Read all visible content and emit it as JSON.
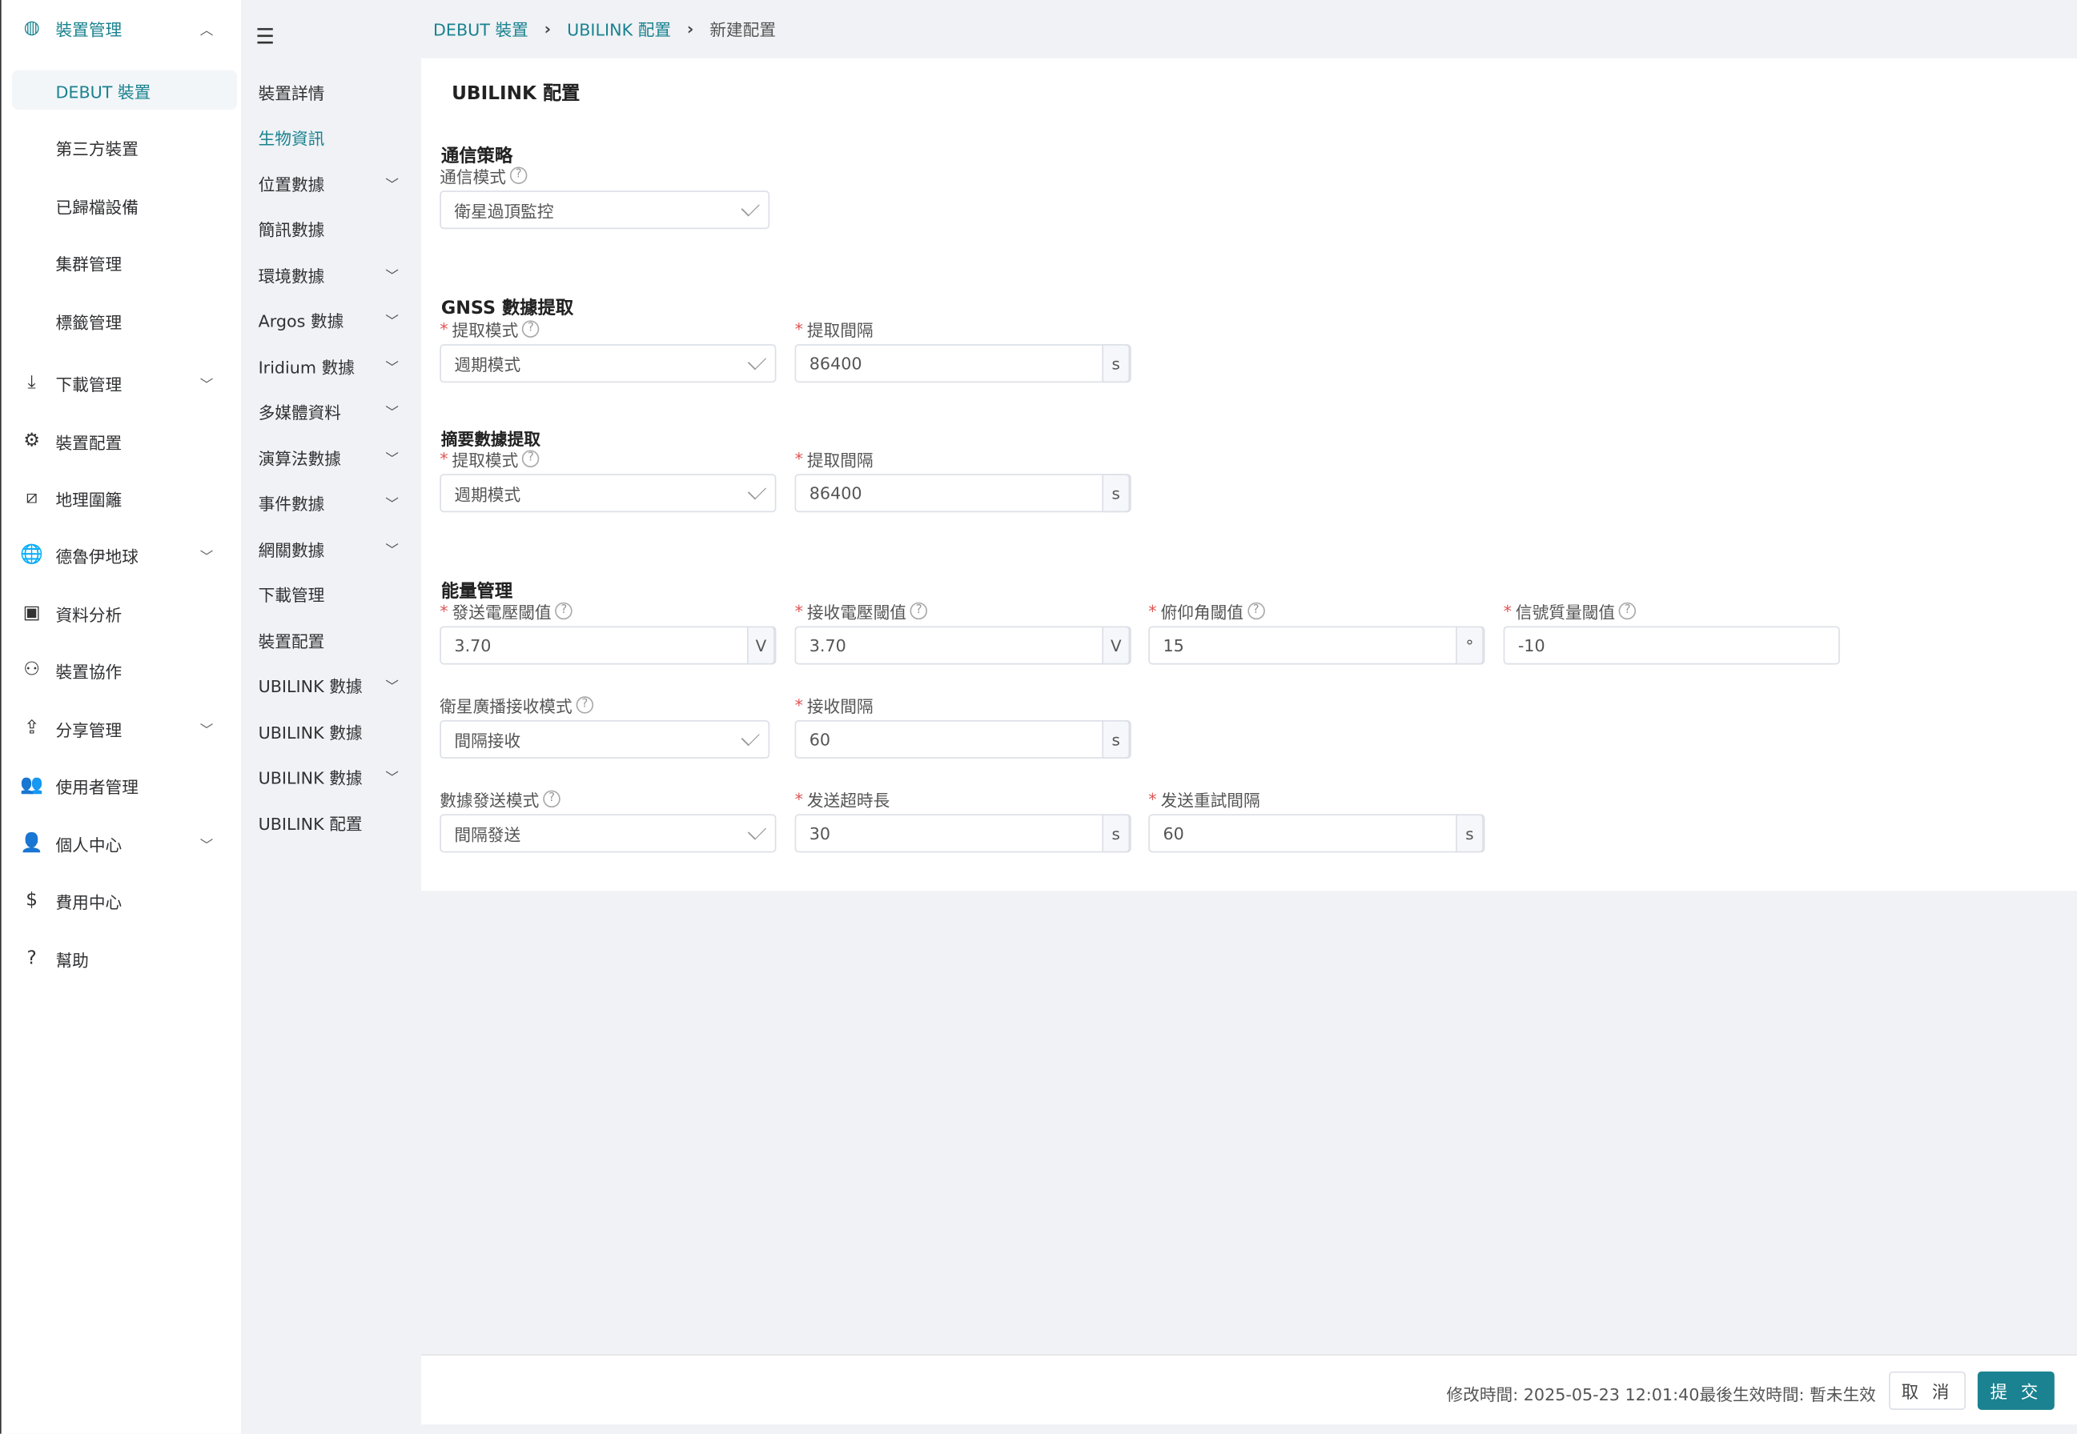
{
  "sidebar": {
    "items": [
      {
        "label": "裝置管理",
        "icon": "chip-icon",
        "chevron": "up",
        "active": true
      },
      {
        "label": "DEBUT 裝置",
        "sub": true,
        "selected": true
      },
      {
        "label": "第三方裝置",
        "sub": true
      },
      {
        "label": "已歸檔設備",
        "sub": true
      },
      {
        "label": "集群管理",
        "sub": true
      },
      {
        "label": "標籤管理",
        "sub": true
      },
      {
        "label": "下載管理",
        "icon": "download-icon",
        "chevron": "down"
      },
      {
        "label": "裝置配置",
        "icon": "device-config-icon"
      },
      {
        "label": "地理圍籬",
        "icon": "geofence-icon"
      },
      {
        "label": "德魯伊地球",
        "icon": "globe-icon",
        "chevron": "down"
      },
      {
        "label": "資料分析",
        "icon": "chart-icon"
      },
      {
        "label": "裝置協作",
        "icon": "collaboration-icon"
      },
      {
        "label": "分享管理",
        "icon": "share-icon",
        "chevron": "down"
      },
      {
        "label": "使用者管理",
        "icon": "users-icon"
      },
      {
        "label": "個人中心",
        "icon": "user-icon",
        "chevron": "down"
      },
      {
        "label": "費用中心",
        "icon": "dollar-icon"
      },
      {
        "label": "幫助",
        "icon": "help-icon"
      }
    ]
  },
  "subnav": {
    "items": [
      {
        "label": "裝置詳情"
      },
      {
        "label": "生物資訊",
        "active": true
      },
      {
        "label": "位置數據",
        "chevron": true
      },
      {
        "label": "簡訊數據"
      },
      {
        "label": "環境數據",
        "chevron": true
      },
      {
        "label": "Argos 數據",
        "chevron": true
      },
      {
        "label": "Iridium 數據",
        "chevron": true
      },
      {
        "label": "多媒體資料",
        "chevron": true
      },
      {
        "label": "演算法數據",
        "chevron": true
      },
      {
        "label": "事件數據",
        "chevron": true
      },
      {
        "label": "網關數據",
        "chevron": true
      },
      {
        "label": "下載管理"
      },
      {
        "label": "裝置配置"
      },
      {
        "label": "UBILINK 數據",
        "chevron": true
      },
      {
        "label": "UBILINK 數據"
      },
      {
        "label": "UBILINK 數據",
        "chevron": true
      },
      {
        "label": "UBILINK 配置"
      }
    ]
  },
  "breadcrumb": [
    "DEBUT 裝置",
    "UBILINK 配置",
    "新建配置"
  ],
  "page_title": "UBILINK 配置",
  "sections": {
    "comm": "通信策略",
    "gnss": "GNSS 數據提取",
    "summary": "摘要數據提取",
    "energy": "能量管理"
  },
  "fields": [
    {
      "label": "通信模式",
      "help": true,
      "value": "衛星過頂監控",
      "type": "select"
    },
    {
      "label": "提取模式",
      "req": true,
      "help": true,
      "value": "週期模式",
      "type": "select"
    },
    {
      "label": "提取間隔",
      "req": true,
      "value": "86400",
      "unit": "s"
    },
    {
      "label": "提取模式",
      "req": true,
      "help": true,
      "value": "週期模式",
      "type": "select"
    },
    {
      "label": "提取間隔",
      "req": true,
      "value": "86400",
      "unit": "s"
    },
    {
      "label": "發送電壓閾值",
      "req": true,
      "help": true,
      "value": "3.70",
      "unit": "V"
    },
    {
      "label": "接收電壓閾值",
      "req": true,
      "help": true,
      "value": "3.70",
      "unit": "V"
    },
    {
      "label": "俯仰角閾值",
      "req": true,
      "help": true,
      "value": "15",
      "unit": "°"
    },
    {
      "label": "信號質量閾值",
      "req": true,
      "help": true,
      "value": "-10"
    },
    {
      "label": "衛星廣播接收模式",
      "help": true,
      "value": "間隔接收",
      "type": "select"
    },
    {
      "label": "接收間隔",
      "req": true,
      "value": "60",
      "unit": "s"
    },
    {
      "label": "數據發送模式",
      "help": true,
      "value": "間隔發送",
      "type": "select"
    },
    {
      "label": "发送超時長",
      "req": true,
      "value": "30",
      "unit": "s"
    },
    {
      "label": "发送重試間隔",
      "req": true,
      "value": "60",
      "unit": "s"
    }
  ],
  "footer": {
    "modified": "修改時間: 2025-05-23 12:01:40",
    "effective": "最後生效時間: 暫未生效",
    "cancel": "取 消",
    "submit": "提 交"
  },
  "colors": {
    "accent": "#1a8290",
    "required": "#e05555"
  }
}
